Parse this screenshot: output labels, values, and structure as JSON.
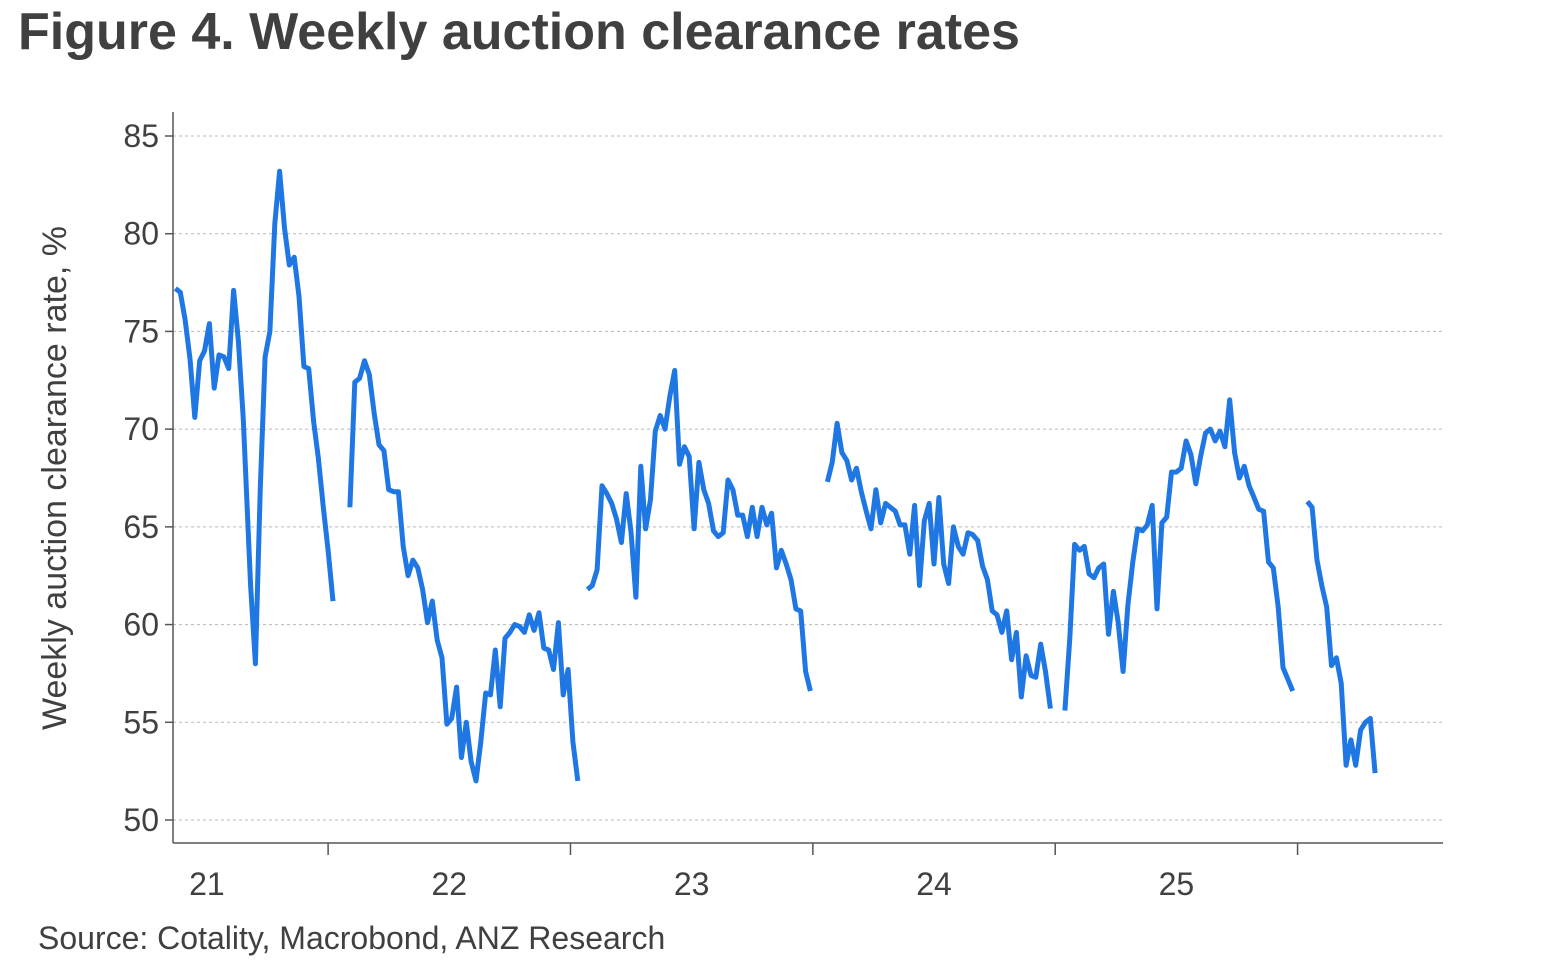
{
  "title": "Figure 4. Weekly auction clearance rates",
  "source": "Source: Cotality, Macrobond, ANZ Research",
  "chart_data": {
    "type": "line",
    "title": "Figure 4. Weekly auction clearance rates",
    "ylabel": "Weekly auction clearance rate, %",
    "xlabel": "",
    "x_unit": "year (fractional, 2000s)",
    "xlim": [
      20.86,
      26.1
    ],
    "ylim": [
      49,
      86
    ],
    "yticks": [
      50,
      55,
      60,
      65,
      70,
      75,
      80,
      85
    ],
    "xticks": [
      {
        "value": 21.5,
        "label": "21"
      },
      {
        "value": 22.5,
        "label": "22"
      },
      {
        "value": 23.5,
        "label": "23"
      },
      {
        "value": 24.5,
        "label": "24"
      },
      {
        "value": 25.5,
        "label": "25"
      }
    ],
    "xtick_labels": [
      {
        "value": 21,
        "label": "21"
      },
      {
        "value": 22,
        "label": "22"
      },
      {
        "value": 23,
        "label": "23"
      },
      {
        "value": 24,
        "label": "24"
      },
      {
        "value": 25,
        "label": "25"
      }
    ],
    "grid": "horizontal dashed",
    "line_color": "#1f77e4",
    "series": [
      {
        "segments": [
          [
            [
              20.87,
              77.2
            ],
            [
              20.89,
              77.0
            ],
            [
              20.91,
              75.6
            ],
            [
              20.93,
              73.6
            ],
            [
              20.95,
              70.6
            ],
            [
              20.97,
              73.5
            ],
            [
              20.99,
              74.0
            ],
            [
              21.01,
              75.4
            ],
            [
              21.03,
              72.1
            ],
            [
              21.05,
              73.8
            ],
            [
              21.07,
              73.7
            ],
            [
              21.09,
              73.1
            ],
            [
              21.11,
              77.1
            ],
            [
              21.13,
              74.5
            ],
            [
              21.15,
              70.5
            ],
            [
              21.18,
              62.0
            ],
            [
              21.2,
              58.0
            ],
            [
              21.22,
              67.0
            ],
            [
              21.24,
              73.7
            ],
            [
              21.26,
              75.0
            ],
            [
              21.28,
              80.5
            ],
            [
              21.3,
              83.2
            ],
            [
              21.32,
              80.3
            ],
            [
              21.34,
              78.4
            ],
            [
              21.36,
              78.8
            ],
            [
              21.38,
              76.8
            ],
            [
              21.4,
              73.2
            ],
            [
              21.42,
              73.1
            ],
            [
              21.44,
              70.4
            ],
            [
              21.46,
              68.5
            ],
            [
              21.48,
              66.0
            ],
            [
              21.5,
              63.8
            ],
            [
              21.52,
              61.2
            ]
          ],
          [
            [
              21.59,
              66.0
            ],
            [
              21.61,
              72.4
            ],
            [
              21.63,
              72.6
            ],
            [
              21.65,
              73.5
            ],
            [
              21.67,
              72.8
            ],
            [
              21.69,
              70.8
            ],
            [
              21.71,
              69.2
            ],
            [
              21.73,
              68.9
            ],
            [
              21.75,
              66.9
            ],
            [
              21.77,
              66.8
            ],
            [
              21.79,
              66.8
            ],
            [
              21.81,
              64.0
            ],
            [
              21.83,
              62.5
            ],
            [
              21.85,
              63.3
            ],
            [
              21.87,
              62.9
            ],
            [
              21.89,
              61.8
            ],
            [
              21.91,
              60.1
            ],
            [
              21.93,
              61.2
            ],
            [
              21.95,
              59.2
            ],
            [
              21.97,
              58.3
            ],
            [
              21.99,
              54.9
            ],
            [
              22.01,
              55.2
            ],
            [
              22.03,
              56.8
            ],
            [
              22.05,
              53.2
            ],
            [
              22.07,
              55.0
            ],
            [
              22.09,
              53.0
            ],
            [
              22.11,
              52.0
            ],
            [
              22.13,
              54.0
            ],
            [
              22.15,
              56.5
            ],
            [
              22.17,
              56.4
            ],
            [
              22.19,
              58.7
            ],
            [
              22.21,
              55.8
            ],
            [
              22.23,
              59.3
            ],
            [
              22.25,
              59.6
            ],
            [
              22.27,
              60.0
            ],
            [
              22.29,
              59.9
            ],
            [
              22.31,
              59.6
            ],
            [
              22.33,
              60.5
            ],
            [
              22.35,
              59.7
            ],
            [
              22.37,
              60.6
            ],
            [
              22.39,
              58.8
            ],
            [
              22.41,
              58.7
            ],
            [
              22.43,
              57.7
            ],
            [
              22.45,
              60.1
            ],
            [
              22.47,
              56.4
            ],
            [
              22.49,
              57.7
            ],
            [
              22.51,
              54.0
            ],
            [
              22.53,
              52.0
            ]
          ],
          [
            [
              22.57,
              61.8
            ],
            [
              22.59,
              62.0
            ],
            [
              22.61,
              62.8
            ],
            [
              22.63,
              67.1
            ],
            [
              22.65,
              66.7
            ],
            [
              22.67,
              66.2
            ],
            [
              22.69,
              65.4
            ],
            [
              22.71,
              64.2
            ],
            [
              22.73,
              66.7
            ],
            [
              22.75,
              64.7
            ],
            [
              22.77,
              61.4
            ],
            [
              22.79,
              68.1
            ],
            [
              22.81,
              64.9
            ],
            [
              22.83,
              66.4
            ],
            [
              22.85,
              69.9
            ],
            [
              22.87,
              70.7
            ],
            [
              22.89,
              70.0
            ],
            [
              22.91,
              71.7
            ],
            [
              22.93,
              73.0
            ],
            [
              22.95,
              68.2
            ],
            [
              22.97,
              69.1
            ],
            [
              22.99,
              68.6
            ],
            [
              23.01,
              64.9
            ],
            [
              23.03,
              68.3
            ],
            [
              23.05,
              66.9
            ],
            [
              23.07,
              66.2
            ],
            [
              23.09,
              64.8
            ],
            [
              23.11,
              64.5
            ],
            [
              23.13,
              64.7
            ],
            [
              23.15,
              67.4
            ],
            [
              23.17,
              66.9
            ],
            [
              23.19,
              65.6
            ],
            [
              23.21,
              65.6
            ],
            [
              23.23,
              64.5
            ],
            [
              23.25,
              66.0
            ],
            [
              23.27,
              64.5
            ],
            [
              23.29,
              66.0
            ],
            [
              23.31,
              65.1
            ],
            [
              23.33,
              65.7
            ],
            [
              23.35,
              62.9
            ],
            [
              23.37,
              63.8
            ],
            [
              23.39,
              63.1
            ],
            [
              23.41,
              62.3
            ],
            [
              23.43,
              60.8
            ],
            [
              23.45,
              60.7
            ],
            [
              23.47,
              57.6
            ],
            [
              23.49,
              56.6
            ]
          ],
          [
            [
              23.56,
              67.3
            ],
            [
              23.58,
              68.3
            ],
            [
              23.6,
              70.3
            ],
            [
              23.62,
              68.8
            ],
            [
              23.64,
              68.4
            ],
            [
              23.66,
              67.4
            ],
            [
              23.68,
              68.0
            ],
            [
              23.7,
              66.8
            ],
            [
              23.72,
              65.8
            ],
            [
              23.74,
              64.9
            ],
            [
              23.76,
              66.9
            ],
            [
              23.78,
              65.2
            ],
            [
              23.8,
              66.2
            ],
            [
              23.82,
              66.0
            ],
            [
              23.84,
              65.8
            ],
            [
              23.86,
              65.1
            ],
            [
              23.88,
              65.1
            ],
            [
              23.9,
              63.6
            ],
            [
              23.92,
              66.1
            ],
            [
              23.94,
              62.0
            ],
            [
              23.96,
              65.3
            ],
            [
              23.98,
              66.2
            ],
            [
              24.0,
              63.1
            ],
            [
              24.02,
              66.5
            ],
            [
              24.04,
              63.1
            ],
            [
              24.06,
              62.1
            ],
            [
              24.08,
              65.0
            ],
            [
              24.1,
              64.0
            ],
            [
              24.12,
              63.6
            ],
            [
              24.14,
              64.7
            ],
            [
              24.16,
              64.6
            ],
            [
              24.18,
              64.3
            ],
            [
              24.2,
              63.0
            ],
            [
              24.22,
              62.3
            ],
            [
              24.24,
              60.7
            ],
            [
              24.26,
              60.5
            ],
            [
              24.28,
              59.6
            ],
            [
              24.3,
              60.7
            ],
            [
              24.32,
              58.2
            ],
            [
              24.34,
              59.6
            ],
            [
              24.36,
              56.3
            ],
            [
              24.38,
              58.4
            ],
            [
              24.4,
              57.4
            ],
            [
              24.42,
              57.3
            ],
            [
              24.44,
              59.0
            ],
            [
              24.46,
              57.6
            ],
            [
              24.48,
              55.7
            ]
          ],
          [
            [
              24.54,
              55.6
            ],
            [
              24.56,
              59.3
            ],
            [
              24.58,
              64.1
            ],
            [
              24.6,
              63.8
            ],
            [
              24.62,
              64.0
            ],
            [
              24.64,
              62.6
            ],
            [
              24.66,
              62.4
            ],
            [
              24.68,
              62.9
            ],
            [
              24.7,
              63.1
            ],
            [
              24.72,
              59.5
            ],
            [
              24.74,
              61.7
            ],
            [
              24.76,
              60.1
            ],
            [
              24.78,
              57.6
            ],
            [
              24.8,
              61.0
            ],
            [
              24.82,
              63.2
            ],
            [
              24.84,
              64.9
            ],
            [
              24.86,
              64.8
            ],
            [
              24.88,
              65.1
            ],
            [
              24.9,
              66.1
            ],
            [
              24.92,
              60.8
            ],
            [
              24.94,
              65.2
            ],
            [
              24.96,
              65.5
            ],
            [
              24.98,
              67.8
            ],
            [
              25.0,
              67.8
            ],
            [
              25.02,
              68.0
            ],
            [
              25.04,
              69.4
            ],
            [
              25.06,
              68.7
            ],
            [
              25.08,
              67.2
            ],
            [
              25.1,
              68.6
            ],
            [
              25.12,
              69.8
            ],
            [
              25.14,
              70.0
            ],
            [
              25.16,
              69.4
            ],
            [
              25.18,
              69.9
            ],
            [
              25.2,
              69.1
            ],
            [
              25.22,
              71.5
            ],
            [
              25.24,
              68.8
            ],
            [
              25.26,
              67.5
            ],
            [
              25.28,
              68.1
            ],
            [
              25.3,
              67.1
            ],
            [
              25.32,
              66.5
            ],
            [
              25.34,
              65.9
            ],
            [
              25.36,
              65.8
            ],
            [
              25.38,
              63.2
            ],
            [
              25.4,
              62.9
            ],
            [
              25.42,
              60.9
            ],
            [
              25.44,
              57.8
            ],
            [
              25.46,
              57.2
            ],
            [
              25.48,
              56.6
            ]
          ],
          [
            [
              25.54,
              66.3
            ],
            [
              25.56,
              66.0
            ],
            [
              25.58,
              63.3
            ],
            [
              25.6,
              62.0
            ],
            [
              25.62,
              60.9
            ],
            [
              25.64,
              57.9
            ],
            [
              25.66,
              58.3
            ],
            [
              25.68,
              57.0
            ],
            [
              25.7,
              52.8
            ],
            [
              25.72,
              54.1
            ],
            [
              25.74,
              52.8
            ],
            [
              25.76,
              54.6
            ],
            [
              25.78,
              55.0
            ],
            [
              25.8,
              55.2
            ],
            [
              25.82,
              52.4
            ]
          ]
        ]
      }
    ]
  }
}
